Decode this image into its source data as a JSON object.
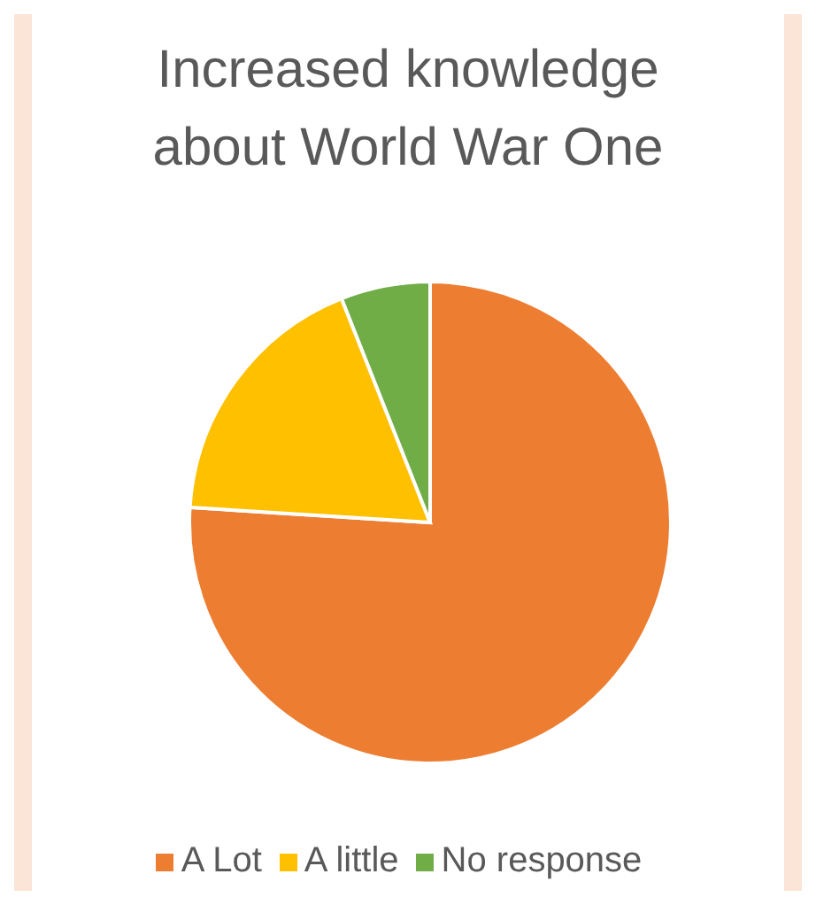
{
  "chart_data": {
    "type": "pie",
    "title": "Increased knowledge about World War One",
    "categories": [
      "A Lot",
      "A little",
      "No response"
    ],
    "values": [
      76,
      18,
      6
    ],
    "colors": [
      "#ed7d31",
      "#ffc000",
      "#70ad47"
    ],
    "legend": "bottom"
  }
}
